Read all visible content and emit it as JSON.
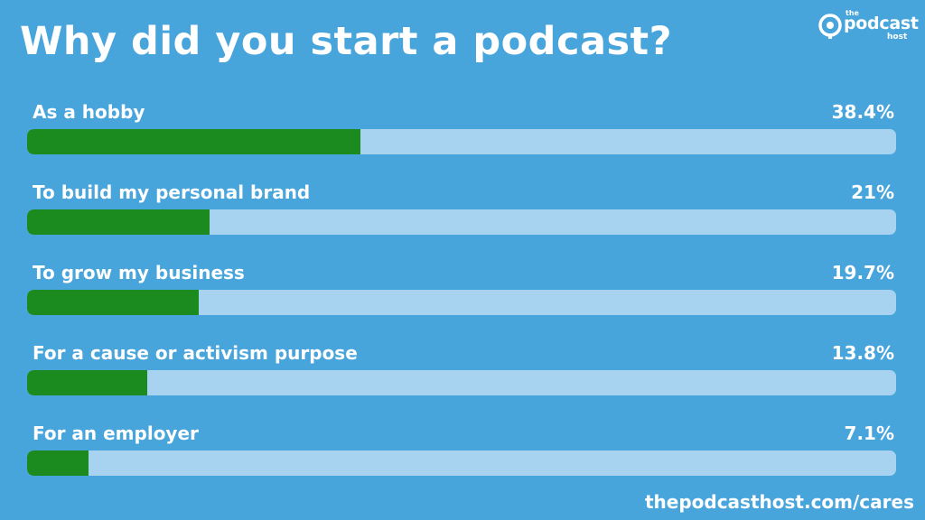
{
  "title": "Why did you start a podcast?",
  "logo": {
    "the": "the",
    "main": "podcast",
    "sub": "host"
  },
  "footer": "thepodcasthost.com/cares",
  "colors": {
    "background": "#48a5dc",
    "bar_fill": "#1b8a1f",
    "bar_track": "#a8d3f0",
    "text": "#ffffff"
  },
  "chart_data": {
    "type": "bar",
    "title": "Why did you start a podcast?",
    "xlabel": "",
    "ylabel": "",
    "ylim": [
      0,
      100
    ],
    "grid": false,
    "categories": [
      "As a hobby",
      "To build my personal brand",
      "To grow my business",
      "For a cause or activism purpose",
      "For an employer"
    ],
    "values": [
      38.4,
      21,
      19.7,
      13.8,
      7.1
    ],
    "value_labels": [
      "38.4%",
      "21%",
      "19.7%",
      "13.8%",
      "7.1%"
    ]
  }
}
